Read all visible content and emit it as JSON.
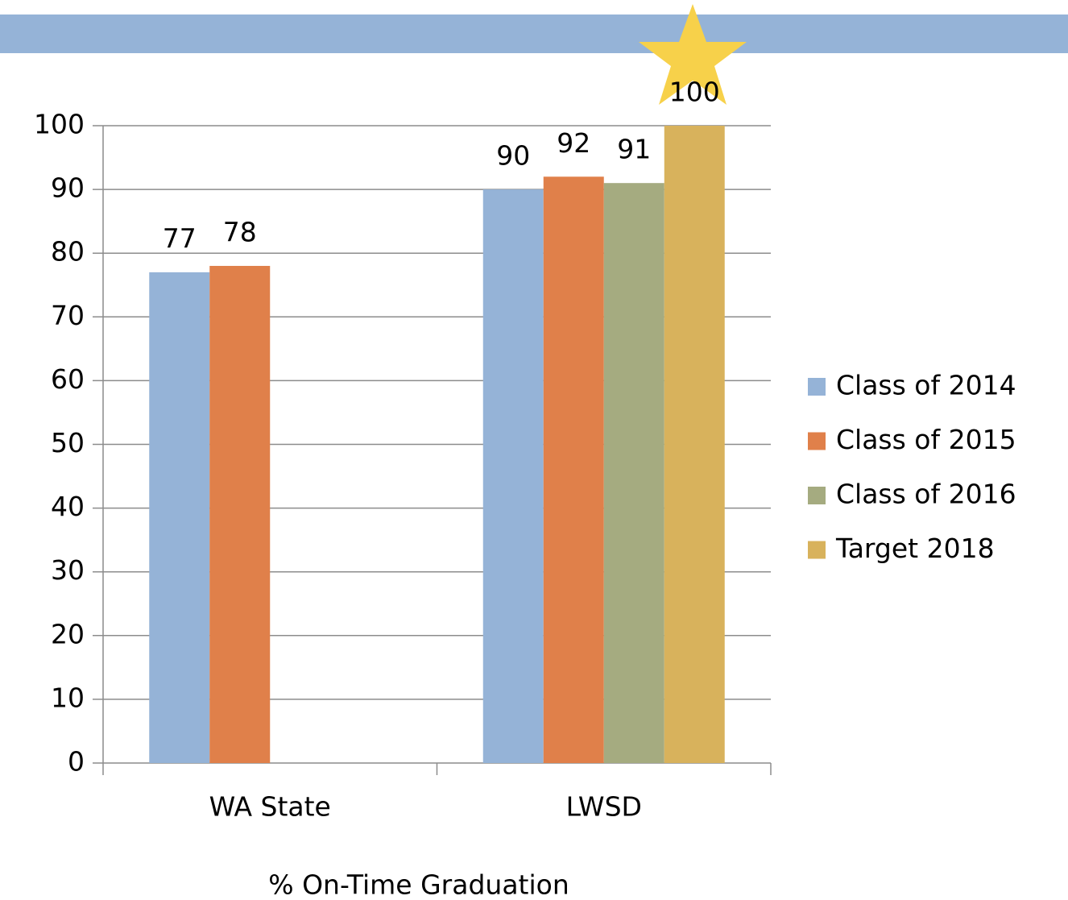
{
  "chart_data": {
    "type": "bar",
    "x_label": "% On-Time Graduation",
    "categories": [
      "WA State",
      "LWSD"
    ],
    "series": [
      {
        "name": "Class of 2014",
        "color": "#95b3d7",
        "values": [
          77,
          90
        ]
      },
      {
        "name": "Class of 2015",
        "color": "#e0804a",
        "values": [
          78,
          92
        ]
      },
      {
        "name": "Class of 2016",
        "color": "#a5ab80",
        "values": [
          null,
          91
        ]
      },
      {
        "name": "Target 2018",
        "color": "#d8b25c",
        "values": [
          null,
          100
        ]
      }
    ],
    "ylim": [
      0,
      100
    ],
    "yticks": [
      0,
      10,
      20,
      30,
      40,
      50,
      60,
      70,
      80,
      90,
      100
    ],
    "grid": true,
    "legend": "right"
  }
}
